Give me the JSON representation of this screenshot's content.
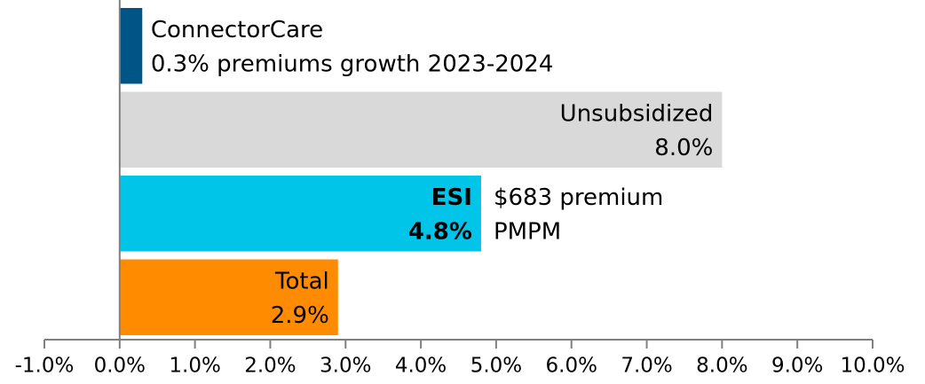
{
  "chart_data": {
    "type": "hbar",
    "categories": [
      "ConnectorCare",
      "Unsubsidized",
      "ESI",
      "Total"
    ],
    "values": [
      0.3,
      8.0,
      4.8,
      2.9
    ],
    "value_labels": [
      "0.3% premiums growth 2023-2024",
      "8.0%",
      "4.8%",
      "2.9%"
    ],
    "colors": [
      "#005587",
      "#d9d9d9",
      "#00c5e8",
      "#ff8c00"
    ],
    "annotations": [
      "$683 premium",
      "PMPM"
    ],
    "xlim": [
      -1,
      10
    ],
    "xticks": [
      {
        "value": -1,
        "label": "-1.0%"
      },
      {
        "value": 0,
        "label": "0.0%"
      },
      {
        "value": 1,
        "label": "1.0%"
      },
      {
        "value": 2,
        "label": "2.0%"
      },
      {
        "value": 3,
        "label": "3.0%"
      },
      {
        "value": 4,
        "label": "4.0%"
      },
      {
        "value": 5,
        "label": "5.0%"
      },
      {
        "value": 6,
        "label": "6.0%"
      },
      {
        "value": 7,
        "label": "7.0%"
      },
      {
        "value": 8,
        "label": "8.0%"
      },
      {
        "value": 9,
        "label": "9.0%"
      },
      {
        "value": 10,
        "label": "10.0%"
      }
    ]
  }
}
